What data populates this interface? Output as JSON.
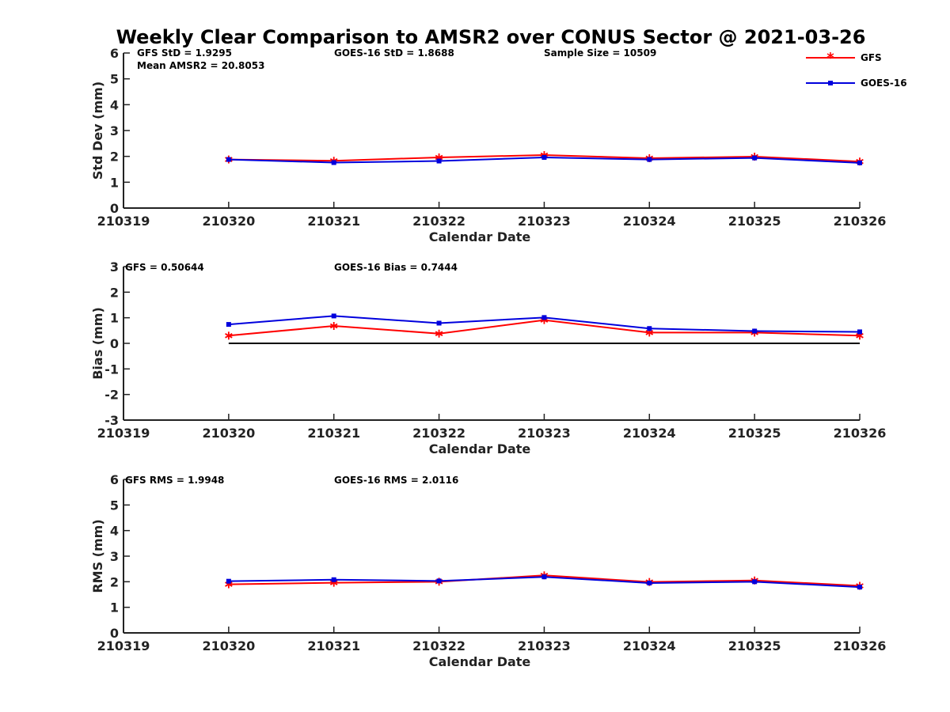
{
  "title": "Weekly Clear Comparison to AMSR2 over CONUS Sector @ 2021-03-26",
  "legend": [
    {
      "label": "GFS",
      "color": "#ff0000",
      "marker": "asterisk"
    },
    {
      "label": "GOES-16",
      "color": "#0000dd",
      "marker": "square"
    }
  ],
  "chart_data": [
    {
      "type": "line",
      "xlabel": "Calendar Date",
      "ylabel": "Std Dev (mm)",
      "x_ticks": [
        "210319",
        "210320",
        "210321",
        "210322",
        "210323",
        "210324",
        "210325",
        "210326"
      ],
      "y_ticks": [
        "0",
        "1",
        "2",
        "3",
        "4",
        "5",
        "6"
      ],
      "ylim": [
        0,
        6
      ],
      "x": [
        "210320",
        "210321",
        "210322",
        "210323",
        "210324",
        "210325",
        "210326"
      ],
      "annotations": [
        "GFS StD = 1.9295",
        "Mean AMSR2 = 20.8053",
        "GOES-16 StD = 1.8688",
        "Sample Size = 10509"
      ],
      "series": [
        {
          "name": "GFS",
          "values": [
            1.88,
            1.83,
            1.96,
            2.05,
            1.93,
            1.99,
            1.8
          ]
        },
        {
          "name": "GOES-16",
          "values": [
            1.88,
            1.76,
            1.82,
            1.96,
            1.88,
            1.94,
            1.75
          ]
        }
      ],
      "zero_line": false
    },
    {
      "type": "line",
      "xlabel": "Calendar Date",
      "ylabel": "Bias (mm)",
      "x_ticks": [
        "210319",
        "210320",
        "210321",
        "210322",
        "210323",
        "210324",
        "210325",
        "210326"
      ],
      "y_ticks": [
        "-3",
        "-2",
        "-1",
        "0",
        "1",
        "2",
        "3"
      ],
      "ylim": [
        -3,
        3
      ],
      "x": [
        "210320",
        "210321",
        "210322",
        "210323",
        "210324",
        "210325",
        "210326"
      ],
      "annotations": [
        "GFS = 0.50644",
        "GOES-16 Bias  = 0.7444"
      ],
      "series": [
        {
          "name": "GFS",
          "values": [
            0.3,
            0.68,
            0.38,
            0.91,
            0.42,
            0.42,
            0.3
          ]
        },
        {
          "name": "GOES-16",
          "values": [
            0.74,
            1.07,
            0.79,
            1.01,
            0.58,
            0.48,
            0.45
          ]
        }
      ],
      "zero_line": true
    },
    {
      "type": "line",
      "xlabel": "Calendar Date",
      "ylabel": "RMS (mm)",
      "x_ticks": [
        "210319",
        "210320",
        "210321",
        "210322",
        "210323",
        "210324",
        "210325",
        "210326"
      ],
      "y_ticks": [
        "0",
        "1",
        "2",
        "3",
        "4",
        "5",
        "6"
      ],
      "ylim": [
        0,
        6
      ],
      "x": [
        "210320",
        "210321",
        "210322",
        "210323",
        "210324",
        "210325",
        "210326"
      ],
      "annotations": [
        "GFS RMS = 1.9948",
        "GOES-16 RMS = 2.0116"
      ],
      "series": [
        {
          "name": "GFS",
          "values": [
            1.9,
            1.96,
            2.0,
            2.25,
            1.99,
            2.05,
            1.84
          ]
        },
        {
          "name": "GOES-16",
          "values": [
            2.02,
            2.08,
            2.03,
            2.19,
            1.95,
            2.0,
            1.79
          ]
        }
      ],
      "zero_line": false
    }
  ]
}
